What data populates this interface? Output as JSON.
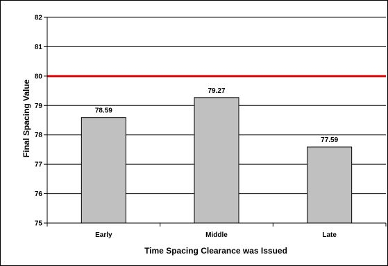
{
  "chart_data": {
    "type": "bar",
    "categories": [
      "Early",
      "Middle",
      "Late"
    ],
    "values": [
      78.59,
      79.27,
      77.59
    ],
    "data_labels": [
      "78.59",
      "79.27",
      "77.59"
    ],
    "title": "",
    "xlabel": "Time Spacing Clearance was Issued",
    "ylabel": "Final Spacing Value",
    "ylim": [
      75,
      82
    ],
    "yticks": [
      "75",
      "76",
      "77",
      "78",
      "79",
      "80",
      "81",
      "82"
    ],
    "grid": true,
    "reference_line": {
      "value": 80,
      "color": "#e00000"
    },
    "bar_color": "#c0c0c0",
    "legend": "none"
  }
}
